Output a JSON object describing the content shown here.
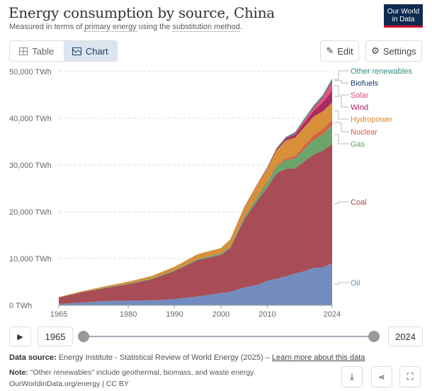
{
  "header": {
    "title": "Energy consumption by source, China",
    "subtitle_pre": "Measured in terms of ",
    "subtitle_link1": "primary energy",
    "subtitle_mid": " using the ",
    "subtitle_link2": "substitution method",
    "subtitle_post": ".",
    "logo": "Our World in Data"
  },
  "tabs": [
    {
      "label": "Table",
      "icon": "table-icon"
    },
    {
      "label": "Chart",
      "icon": "chart-icon"
    }
  ],
  "actions": {
    "edit": "Edit",
    "settings": "Settings"
  },
  "chart_data": {
    "type": "area",
    "stacked": true,
    "title": "Energy consumption by source, China",
    "ylabel": "TWh",
    "ylim": [
      0,
      50000
    ],
    "yticks": [
      "0 TWh",
      "10,000 TWh",
      "20,000 TWh",
      "30,000 TWh",
      "40,000 TWh",
      "50,000 TWh"
    ],
    "ytick_values": [
      0,
      10000,
      20000,
      30000,
      40000,
      50000
    ],
    "xticks": [
      1965,
      1980,
      1990,
      2000,
      2010,
      2024
    ],
    "xlim": [
      1965,
      2024
    ],
    "grid": "horizontal dashed",
    "legend": "right, inline labels",
    "x": [
      1965,
      1970,
      1975,
      1980,
      1985,
      1990,
      1995,
      2000,
      2002,
      2005,
      2008,
      2010,
      2012,
      2014,
      2016,
      2018,
      2020,
      2022,
      2024
    ],
    "series": [
      {
        "name": "Oil",
        "color": "#6b86bd",
        "values": [
          300,
          600,
          900,
          1000,
          1050,
          1350,
          1900,
          2600,
          2900,
          3800,
          4400,
          5200,
          5700,
          6200,
          6800,
          7300,
          8000,
          8100,
          9000
        ]
      },
      {
        "name": "Coal",
        "color": "#a3434d",
        "values": [
          1350,
          2200,
          2800,
          3500,
          4500,
          6000,
          7800,
          8200,
          9300,
          14500,
          18200,
          20000,
          22500,
          23000,
          22500,
          23500,
          24200,
          25000,
          25500
        ]
      },
      {
        "name": "Gas",
        "color": "#63a064",
        "values": [
          10,
          30,
          80,
          150,
          150,
          160,
          200,
          290,
          330,
          500,
          850,
          1100,
          1500,
          1900,
          2100,
          2600,
          3200,
          3500,
          4000
        ]
      },
      {
        "name": "Nuclear",
        "color": "#d25a35",
        "values": [
          0,
          0,
          0,
          0,
          0,
          0,
          40,
          50,
          70,
          140,
          180,
          190,
          250,
          360,
          560,
          800,
          950,
          1100,
          1200
        ]
      },
      {
        "name": "Hydropower",
        "color": "#d6892f",
        "values": [
          120,
          180,
          300,
          400,
          550,
          750,
          1000,
          1100,
          1450,
          2000,
          2500,
          2800,
          3200,
          3800,
          3900,
          3900,
          4000,
          3800,
          3700
        ]
      },
      {
        "name": "Wind",
        "color": "#a5205a",
        "values": [
          0,
          0,
          0,
          0,
          0,
          0,
          0,
          0,
          0,
          10,
          40,
          130,
          260,
          420,
          630,
          960,
          1250,
          1950,
          2500
        ]
      },
      {
        "name": "Solar",
        "color": "#e3496f",
        "values": [
          0,
          0,
          0,
          0,
          0,
          0,
          0,
          0,
          0,
          0,
          0,
          0,
          10,
          60,
          200,
          480,
          700,
          1100,
          2100
        ]
      },
      {
        "name": "Biofuels",
        "color": "#1b3a70",
        "values": [
          0,
          0,
          0,
          0,
          0,
          0,
          0,
          0,
          5,
          20,
          40,
          50,
          60,
          70,
          80,
          85,
          90,
          95,
          100
        ]
      },
      {
        "name": "Other renewables",
        "color": "#2e8b80",
        "values": [
          0,
          0,
          0,
          0,
          0,
          0,
          0,
          10,
          20,
          30,
          50,
          100,
          150,
          200,
          250,
          300,
          330,
          370,
          400
        ]
      }
    ]
  },
  "timeline": {
    "start": "1965",
    "end": "2024"
  },
  "footer": {
    "source_label": "Data source:",
    "source": " Energy Institute - Statistical Review of World Energy (2025) – ",
    "learn_more": "Learn more about this data",
    "note_label": "Note:",
    "note": " \"Other renewables\" include geothermal, biomass, and waste energy.",
    "url": "OurWorldinData.org/energy | CC BY"
  }
}
